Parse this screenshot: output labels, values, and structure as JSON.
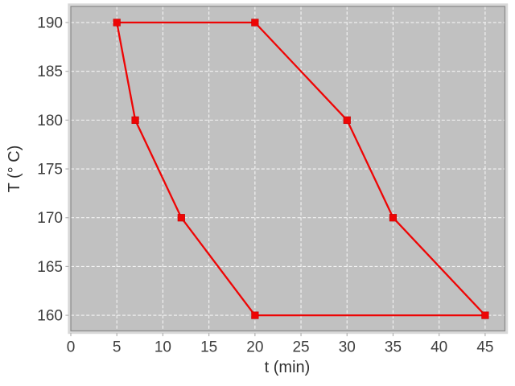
{
  "chart_data": {
    "type": "line",
    "title": "",
    "xlabel": "t (min)",
    "ylabel": "T (° C)",
    "xlim": [
      0,
      47.15
    ],
    "ylim": [
      158.4,
      191.65
    ],
    "x_ticks": [
      0,
      5,
      10,
      15,
      20,
      25,
      30,
      35,
      40,
      45
    ],
    "y_ticks": [
      160,
      165,
      170,
      175,
      180,
      185,
      190
    ],
    "grid": true,
    "legend": "none",
    "series": [
      {
        "name": "temperature-profile",
        "color": "#ee0505",
        "marker": "square",
        "marker_size": 8.6,
        "line_width": 2.3,
        "points": [
          [
            5,
            190
          ],
          [
            20,
            190
          ],
          [
            30,
            180
          ],
          [
            35,
            170
          ],
          [
            45,
            160
          ],
          [
            20,
            160
          ],
          [
            12,
            170
          ],
          [
            7,
            180
          ],
          [
            5,
            190
          ]
        ]
      }
    ],
    "colors": {
      "page_bg": "#ffffff",
      "plot_bg": "#c1c1c1",
      "grid": "#f5f5f5",
      "plot_border": "#8a8a8a",
      "plot_bevel": "#d8d8d8",
      "tick_mark": "#b2b2b2",
      "tick_label": "#3d3d3d",
      "axis_label": "#303030"
    }
  }
}
